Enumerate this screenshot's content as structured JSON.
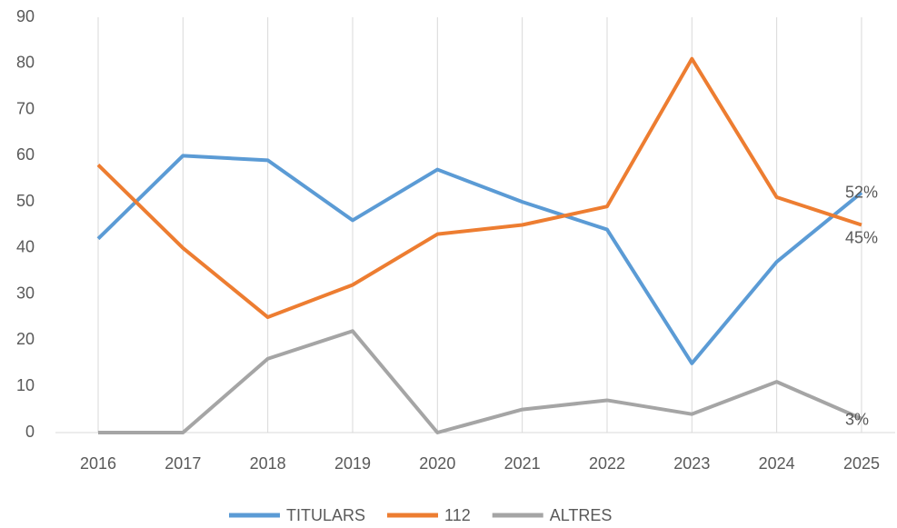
{
  "chart_data": {
    "type": "line",
    "categories": [
      "2016",
      "2017",
      "2018",
      "2019",
      "2020",
      "2021",
      "2022",
      "2023",
      "2024",
      "2025"
    ],
    "series": [
      {
        "name": "TITULARS",
        "color": "#5b9bd5",
        "values": [
          42,
          60,
          59,
          46,
          57,
          50,
          44,
          15,
          37,
          52
        ],
        "value_labels": [
          null,
          null,
          null,
          null,
          null,
          null,
          null,
          null,
          null,
          "52%"
        ]
      },
      {
        "name": "112",
        "color": "#ed7d31",
        "values": [
          58,
          40,
          25,
          32,
          43,
          45,
          49,
          81,
          51,
          45
        ],
        "value_labels": [
          null,
          null,
          null,
          null,
          null,
          null,
          null,
          null,
          null,
          "45%"
        ]
      },
      {
        "name": "ALTRES",
        "color": "#a5a5a5",
        "values": [
          0,
          0,
          16,
          22,
          0,
          5,
          7,
          4,
          11,
          3
        ],
        "value_labels": [
          null,
          null,
          null,
          null,
          null,
          null,
          null,
          null,
          null,
          "3%"
        ]
      }
    ],
    "ylim": [
      0,
      90
    ],
    "yticks": [
      0,
      10,
      20,
      30,
      40,
      50,
      60,
      70,
      80,
      90
    ],
    "grid": "x",
    "legend": "bottom"
  }
}
